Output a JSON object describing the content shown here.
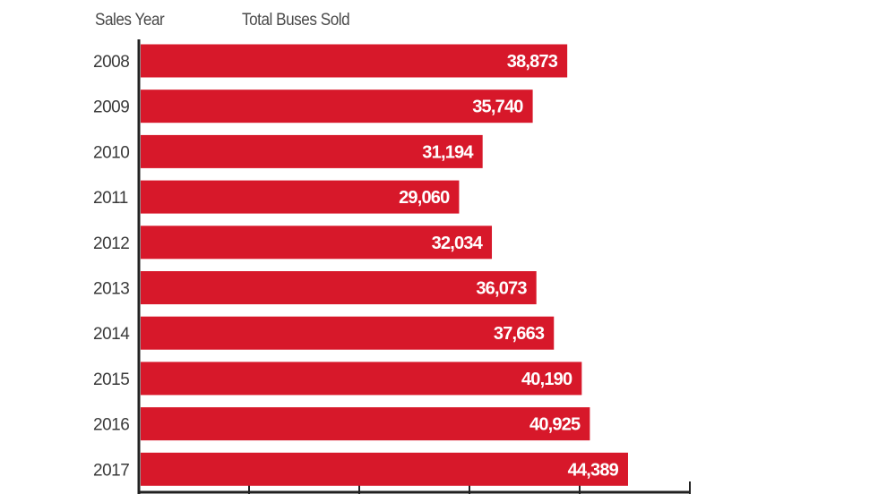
{
  "chart_data": {
    "type": "bar",
    "orientation": "horizontal",
    "xlabel": "Total Buses Sold",
    "ylabel": "Sales Year",
    "categories": [
      "2008",
      "2009",
      "2010",
      "2011",
      "2012",
      "2013",
      "2014",
      "2015",
      "2016",
      "2017"
    ],
    "values": [
      38873,
      35740,
      31194,
      29060,
      32034,
      36073,
      37663,
      40190,
      40925,
      44389
    ],
    "value_labels": [
      "38,873",
      "35,740",
      "31,194",
      "29,060",
      "32,034",
      "36,073",
      "37,663",
      "40,190",
      "40,925",
      "44,389"
    ],
    "xlim": [
      0,
      50000
    ],
    "xticks": [
      0,
      10000,
      20000,
      30000,
      40000,
      50000
    ],
    "bar_color": "#d7182a",
    "grid": false
  }
}
